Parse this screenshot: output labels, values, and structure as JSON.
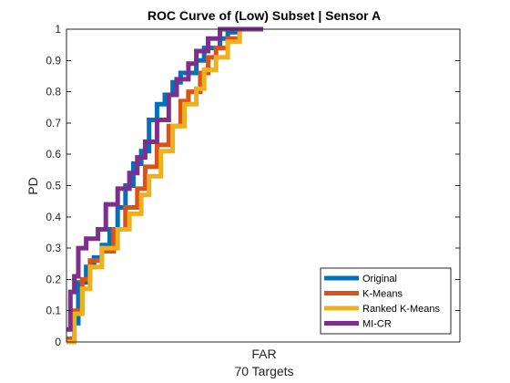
{
  "chart_data": {
    "type": "line",
    "title": "ROC Curve of (Low) Subset | Sensor A",
    "xlabel": "FAR",
    "xsublabel": "70 Targets",
    "ylabel": "PD",
    "ylim": [
      0,
      1
    ],
    "yticks": [
      0,
      0.1,
      0.2,
      0.3,
      0.4,
      0.5,
      0.6,
      0.7,
      0.8,
      0.9,
      1
    ],
    "ytick_labels": [
      "0",
      "0.1",
      "0.2",
      "0.3",
      "0.4",
      "0.5",
      "0.6",
      "0.7",
      "0.8",
      "0.9",
      "1"
    ],
    "xtick_labels": [],
    "grid": false,
    "legend_position": "bottom-right",
    "series": [
      {
        "name": "Original",
        "color": "#0072BD",
        "x": [
          0,
          0.02,
          0.02,
          0.03,
          0.03,
          0.05,
          0.05,
          0.07,
          0.07,
          0.09,
          0.09,
          0.11,
          0.11,
          0.13,
          0.13,
          0.15,
          0.15,
          0.17,
          0.17,
          0.19,
          0.19,
          0.21,
          0.21,
          0.23,
          0.23,
          0.25,
          0.25,
          0.27,
          0.27,
          0.29,
          0.29,
          0.33,
          0.33,
          0.35,
          0.35,
          0.39,
          0.39,
          0.41,
          0.41,
          0.43,
          0.43,
          0.45,
          0.45,
          0.48,
          0.48,
          0.5
        ],
        "y": [
          0.01,
          0.01,
          0.06,
          0.06,
          0.19,
          0.19,
          0.24,
          0.24,
          0.27,
          0.27,
          0.31,
          0.31,
          0.36,
          0.36,
          0.43,
          0.43,
          0.5,
          0.5,
          0.57,
          0.57,
          0.61,
          0.61,
          0.71,
          0.71,
          0.76,
          0.76,
          0.79,
          0.79,
          0.83,
          0.83,
          0.86,
          0.86,
          0.9,
          0.9,
          0.94,
          0.94,
          0.97,
          0.97,
          0.99,
          0.99,
          1,
          1,
          1,
          1,
          1,
          1
        ]
      },
      {
        "name": "K-Means",
        "color": "#D95319",
        "x": [
          0,
          0.02,
          0.02,
          0.04,
          0.04,
          0.06,
          0.06,
          0.09,
          0.09,
          0.12,
          0.12,
          0.15,
          0.15,
          0.18,
          0.18,
          0.2,
          0.2,
          0.23,
          0.23,
          0.26,
          0.26,
          0.29,
          0.29,
          0.31,
          0.31,
          0.34,
          0.34,
          0.36,
          0.36,
          0.38,
          0.38,
          0.41,
          0.41,
          0.44,
          0.44,
          0.47,
          0.47,
          0.5
        ],
        "y": [
          0.01,
          0.01,
          0.1,
          0.1,
          0.2,
          0.2,
          0.26,
          0.26,
          0.29,
          0.29,
          0.36,
          0.36,
          0.43,
          0.43,
          0.49,
          0.49,
          0.56,
          0.56,
          0.63,
          0.63,
          0.69,
          0.69,
          0.77,
          0.77,
          0.8,
          0.8,
          0.86,
          0.86,
          0.91,
          0.91,
          0.94,
          0.94,
          0.97,
          0.97,
          1,
          1,
          1,
          1
        ]
      },
      {
        "name": "Ranked K-Means",
        "color": "#EDB120",
        "x": [
          0,
          0.02,
          0.02,
          0.04,
          0.04,
          0.06,
          0.06,
          0.09,
          0.09,
          0.13,
          0.13,
          0.16,
          0.16,
          0.19,
          0.19,
          0.21,
          0.21,
          0.24,
          0.24,
          0.27,
          0.27,
          0.3,
          0.3,
          0.33,
          0.33,
          0.35,
          0.35,
          0.38,
          0.38,
          0.41,
          0.41,
          0.44,
          0.44,
          0.47,
          0.47,
          0.5
        ],
        "y": [
          0,
          0,
          0.09,
          0.09,
          0.17,
          0.17,
          0.24,
          0.24,
          0.3,
          0.3,
          0.36,
          0.36,
          0.41,
          0.41,
          0.47,
          0.47,
          0.53,
          0.53,
          0.61,
          0.61,
          0.69,
          0.69,
          0.76,
          0.76,
          0.81,
          0.81,
          0.87,
          0.87,
          0.91,
          0.91,
          0.96,
          0.96,
          1,
          1,
          1,
          1
        ]
      },
      {
        "name": "MI-CR",
        "color": "#7E2F8E",
        "x": [
          0,
          0.01,
          0.01,
          0.02,
          0.02,
          0.03,
          0.03,
          0.05,
          0.05,
          0.08,
          0.08,
          0.1,
          0.1,
          0.13,
          0.13,
          0.16,
          0.16,
          0.18,
          0.18,
          0.2,
          0.2,
          0.23,
          0.23,
          0.26,
          0.26,
          0.28,
          0.28,
          0.31,
          0.31,
          0.33,
          0.33,
          0.36,
          0.36,
          0.39,
          0.39,
          0.42,
          0.42,
          0.5
        ],
        "y": [
          0.04,
          0.04,
          0.16,
          0.16,
          0.21,
          0.21,
          0.3,
          0.3,
          0.33,
          0.33,
          0.36,
          0.36,
          0.44,
          0.44,
          0.49,
          0.49,
          0.54,
          0.54,
          0.59,
          0.59,
          0.64,
          0.64,
          0.71,
          0.71,
          0.79,
          0.79,
          0.84,
          0.84,
          0.89,
          0.89,
          0.93,
          0.93,
          0.97,
          0.97,
          1,
          1,
          1,
          1
        ]
      }
    ]
  }
}
